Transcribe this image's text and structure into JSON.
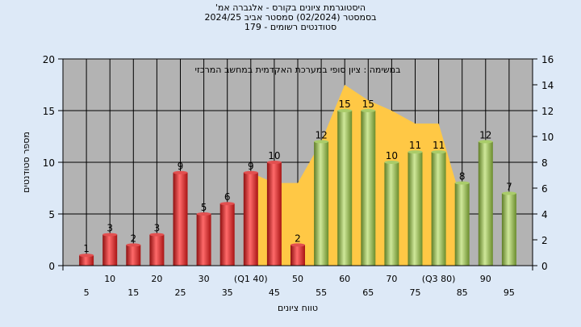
{
  "header": {
    "line1": "'היסטוגרמת ציונים בקורס - אלגברה אמ",
    "line2": "בסמסטר  (02/2024)  סמסטר אביב 2024/25",
    "line3": "סטודנטים רשומים - 179"
  },
  "chart_data": {
    "type": "bar",
    "annotation": "במשימה : ציון סופי במערכת האקדמית במחשב המרכזי",
    "xlabel": "טווח ציונים",
    "ylabel": "מספר סטודנטים",
    "ylim": [
      0,
      20
    ],
    "y2lim": [
      0,
      16
    ],
    "yticks": [
      0,
      5,
      10,
      15,
      20
    ],
    "y2ticks": [
      0,
      2,
      4,
      6,
      8,
      10,
      12,
      14,
      16
    ],
    "grid": true,
    "categories": [
      "5",
      "10",
      "15",
      "20",
      "25",
      "30",
      "35",
      "(Q1 40)",
      "45",
      "50",
      "55",
      "60",
      "65",
      "70",
      "75",
      "(Q3 80)",
      "85",
      "90",
      "95"
    ],
    "values": [
      1,
      3,
      2,
      3,
      9,
      5,
      6,
      9,
      10,
      2,
      12,
      15,
      15,
      10,
      11,
      11,
      8,
      12,
      7
    ],
    "failing_color": "#d42a2a",
    "passing_color": "#8ab34a",
    "area_color": "#ffc845",
    "area_series": [
      {
        "x": "40",
        "y": 7.2
      },
      {
        "x": "45",
        "y": 6.4
      },
      {
        "x": "50",
        "y": 6.4
      },
      {
        "x": "55",
        "y": 9.6
      },
      {
        "x": "60",
        "y": 14
      },
      {
        "x": "65",
        "y": 12.8
      },
      {
        "x": "70",
        "y": 12
      },
      {
        "x": "75",
        "y": 11
      },
      {
        "x": "80",
        "y": 11
      },
      {
        "x": "85",
        "y": 4.8
      }
    ]
  }
}
